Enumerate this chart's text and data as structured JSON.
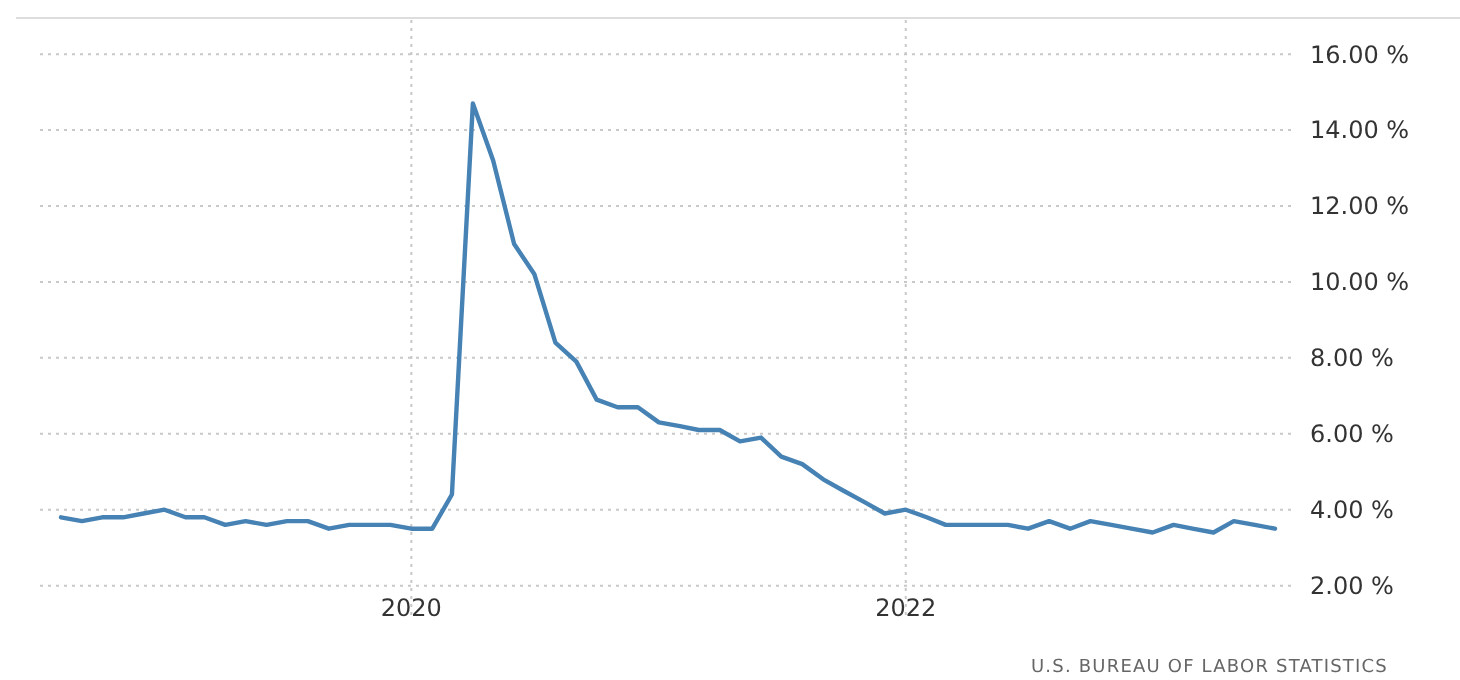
{
  "chart_data": {
    "type": "line",
    "x": [
      "2018-08",
      "2018-09",
      "2018-10",
      "2018-11",
      "2018-12",
      "2019-01",
      "2019-02",
      "2019-03",
      "2019-04",
      "2019-05",
      "2019-06",
      "2019-07",
      "2019-08",
      "2019-09",
      "2019-10",
      "2019-11",
      "2019-12",
      "2020-01",
      "2020-02",
      "2020-03",
      "2020-04",
      "2020-05",
      "2020-06",
      "2020-07",
      "2020-08",
      "2020-09",
      "2020-10",
      "2020-11",
      "2020-12",
      "2021-01",
      "2021-02",
      "2021-03",
      "2021-04",
      "2021-05",
      "2021-06",
      "2021-07",
      "2021-08",
      "2021-09",
      "2021-10",
      "2021-11",
      "2021-12",
      "2022-01",
      "2022-02",
      "2022-03",
      "2022-04",
      "2022-05",
      "2022-06",
      "2022-07",
      "2022-08",
      "2022-09",
      "2022-10",
      "2022-11",
      "2022-12",
      "2023-01",
      "2023-02",
      "2023-03",
      "2023-04",
      "2023-05",
      "2023-06",
      "2023-07"
    ],
    "series": [
      {
        "color": "#4682b4",
        "values": [
          3.8,
          3.7,
          3.8,
          3.8,
          3.9,
          4.0,
          3.8,
          3.8,
          3.6,
          3.7,
          3.6,
          3.7,
          3.7,
          3.5,
          3.6,
          3.6,
          3.6,
          3.5,
          3.5,
          4.4,
          14.7,
          13.2,
          11.0,
          10.2,
          8.4,
          7.9,
          6.9,
          6.7,
          6.7,
          6.3,
          6.2,
          6.1,
          6.1,
          5.8,
          5.9,
          5.4,
          5.2,
          4.8,
          4.5,
          4.2,
          3.9,
          4.0,
          3.8,
          3.6,
          3.6,
          3.6,
          3.6,
          3.5,
          3.7,
          3.5,
          3.7,
          3.6,
          3.5,
          3.4,
          3.6,
          3.5,
          3.4,
          3.7,
          3.6,
          3.5
        ]
      }
    ],
    "xlim": [
      "2018-07",
      "2023-08"
    ],
    "xticks": [
      {
        "value": "2020-01",
        "label": "2020"
      },
      {
        "value": "2022-01",
        "label": "2022"
      }
    ],
    "ylim": [
      1.2,
      16.9
    ],
    "yticks": [
      {
        "value": 2,
        "label": "2.00 %"
      },
      {
        "value": 4,
        "label": "4.00 %"
      },
      {
        "value": 6,
        "label": "6.00 %"
      },
      {
        "value": 8,
        "label": "8.00 %"
      },
      {
        "value": 10,
        "label": "10.00 %"
      },
      {
        "value": 12,
        "label": "12.00 %"
      },
      {
        "value": 14,
        "label": "14.00 %"
      },
      {
        "value": 16,
        "label": "16.00 %"
      }
    ],
    "grid": true,
    "annotations": [
      "U.S. BUREAU OF LABOR STATISTICS"
    ]
  }
}
